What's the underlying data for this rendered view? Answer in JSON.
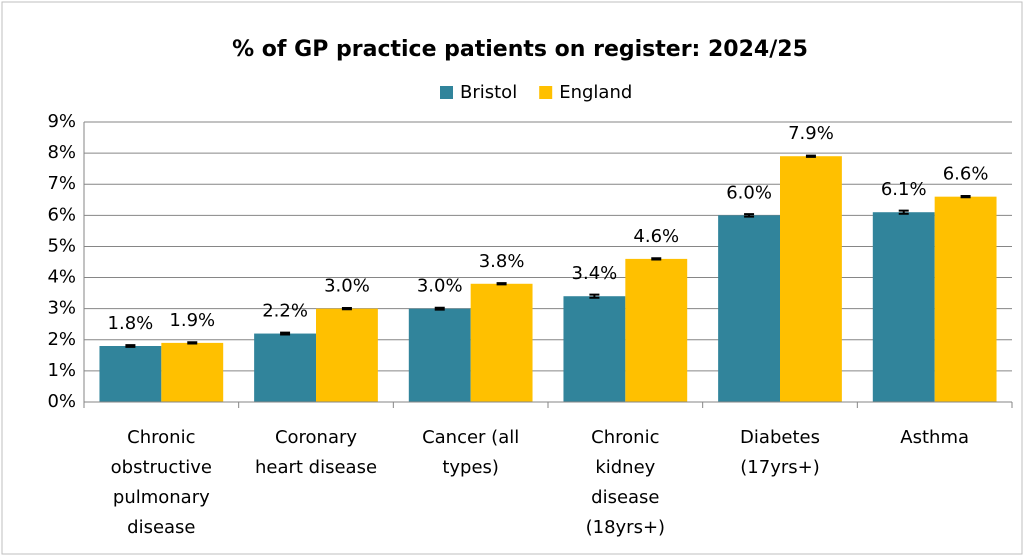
{
  "chart_data": {
    "type": "bar",
    "title": "% of GP practice patients on register: 2024/25",
    "categories": [
      "Chronic obstructive pulmonary disease",
      "Coronary heart disease",
      "Cancer (all types)",
      "Chronic kidney disease (18yrs+)",
      "Diabetes (17yrs+)",
      "Asthma"
    ],
    "series": [
      {
        "name": "Bristol",
        "color": "#31849b",
        "values": [
          1.8,
          2.2,
          3.0,
          3.4,
          6.0,
          6.1
        ],
        "value_labels": [
          "1.8%",
          "2.2%",
          "3.0%",
          "3.4%",
          "6.0%",
          "6.1%"
        ],
        "errors": [
          0.03,
          0.03,
          0.03,
          0.05,
          0.04,
          0.05
        ]
      },
      {
        "name": "England",
        "color": "#ffc000",
        "values": [
          1.9,
          3.0,
          3.8,
          4.6,
          7.9,
          6.6
        ],
        "value_labels": [
          "1.9%",
          "3.0%",
          "3.8%",
          "4.6%",
          "7.9%",
          "6.6%"
        ],
        "errors": [
          0.02,
          0.02,
          0.02,
          0.02,
          0.02,
          0.02
        ]
      }
    ],
    "ylim": [
      0,
      9
    ],
    "yticks": [
      {
        "value": 0,
        "label": "0%"
      },
      {
        "value": 1,
        "label": "1%"
      },
      {
        "value": 2,
        "label": "2%"
      },
      {
        "value": 3,
        "label": "3%"
      },
      {
        "value": 4,
        "label": "4%"
      },
      {
        "value": 5,
        "label": "5%"
      },
      {
        "value": 6,
        "label": "6%"
      },
      {
        "value": 7,
        "label": "7%"
      },
      {
        "value": 8,
        "label": "8%"
      },
      {
        "value": 9,
        "label": "9%"
      }
    ],
    "grid": true,
    "legend": "top"
  }
}
